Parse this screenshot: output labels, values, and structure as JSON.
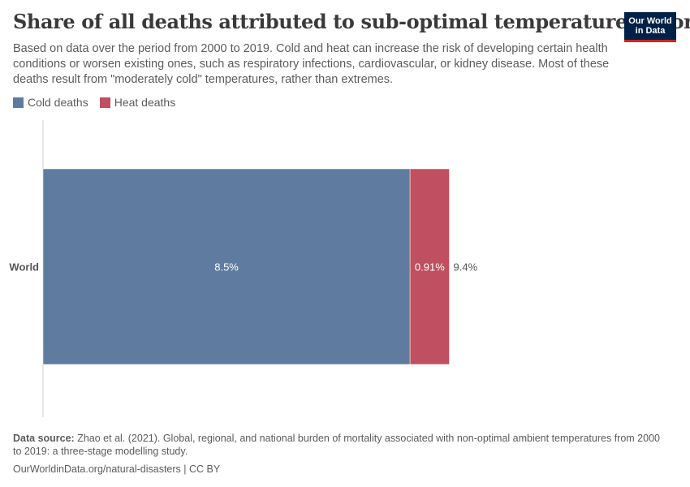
{
  "header": {
    "title": "Share of all deaths attributed to sub-optimal temperatures, World",
    "subtitle": "Based on data over the period from 2000 to 2019. Cold and heat can increase the risk of developing certain health conditions or worsen existing ones, such as respiratory infections, cardiovascular, or kidney disease. Most of these deaths result from \"moderately cold\" temperatures, rather than extremes."
  },
  "logo": {
    "line1": "Our World",
    "line2": "in Data"
  },
  "chart_data": {
    "type": "bar",
    "orientation": "horizontal",
    "stacked": true,
    "categories": [
      "World"
    ],
    "series": [
      {
        "name": "Cold deaths",
        "values": [
          8.5
        ],
        "labels": [
          "8.5%"
        ],
        "color": "#5f7ca0"
      },
      {
        "name": "Heat deaths",
        "values": [
          0.91
        ],
        "labels": [
          "0.91%"
        ],
        "color": "#c05060"
      }
    ],
    "totals": [
      9.4
    ],
    "total_labels": [
      "9.4%"
    ],
    "xlim": [
      0,
      9.4
    ],
    "unit": "%",
    "legend_position": "top-left",
    "grid": false
  },
  "footer": {
    "source_label": "Data source:",
    "source_text": "Zhao et al. (2021). Global, regional, and national burden of mortality associated with non-optimal ambient temperatures from 2000 to 2019: a three-stage modelling study.",
    "url_text": "OurWorldinData.org/natural-disasters | CC BY"
  }
}
